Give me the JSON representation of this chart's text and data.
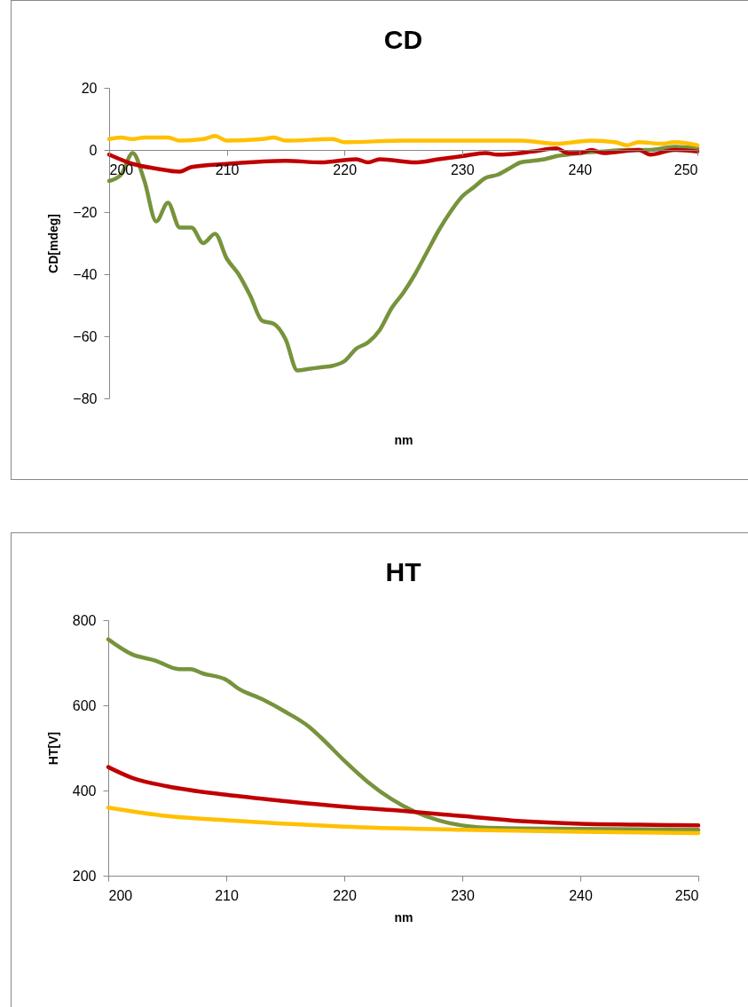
{
  "chart_data": [
    {
      "type": "line",
      "title": "CD",
      "xlabel": "nm",
      "ylabel": "CD[mdeg]",
      "xlim": [
        200,
        250
      ],
      "xticks": [
        200,
        210,
        220,
        230,
        240,
        250
      ],
      "ylim": [
        -80,
        20
      ],
      "yticks": [
        -80,
        -60,
        -40,
        -20,
        0,
        20
      ],
      "series": [
        {
          "color": "#77933c",
          "x": [
            200,
            201,
            202,
            203,
            204,
            205,
            206,
            207,
            208,
            209,
            210,
            211,
            212,
            213,
            214,
            215,
            216,
            217,
            218,
            219,
            220,
            221,
            222,
            223,
            224,
            225,
            226,
            227,
            228,
            229,
            230,
            231,
            232,
            233,
            234,
            235,
            236,
            237,
            238,
            239,
            240,
            242,
            244,
            246,
            248,
            250
          ],
          "values": [
            -10,
            -8,
            -1,
            -10,
            -23,
            -17,
            -25,
            -25,
            -30,
            -27,
            -35,
            -40,
            -47,
            -55,
            -56,
            -61,
            -71,
            -70.5,
            -70,
            -69.5,
            -68,
            -64,
            -62,
            -58,
            -51,
            -46,
            -40,
            -33,
            -26,
            -20,
            -15,
            -12,
            -9,
            -8,
            -6,
            -4,
            -3.5,
            -3,
            -2,
            -1.5,
            -1,
            -0.5,
            0,
            0,
            1,
            0.5
          ]
        },
        {
          "color": "#c00000",
          "x": [
            200,
            202,
            204,
            206,
            207,
            210,
            215,
            218,
            221,
            222,
            223,
            226,
            228,
            230,
            232,
            233,
            236,
            238,
            239,
            240,
            241,
            242,
            245,
            246,
            248,
            250
          ],
          "values": [
            -1.5,
            -4.5,
            -6,
            -7,
            -5.5,
            -4.5,
            -3.5,
            -4,
            -3,
            -4,
            -3,
            -4,
            -3,
            -2,
            -1,
            -1.5,
            -0.5,
            0.5,
            -1,
            -1,
            0,
            -1,
            0,
            -1.5,
            0,
            -0.5
          ]
        },
        {
          "color": "#ffc000",
          "x": [
            200,
            201,
            202,
            203,
            205,
            206,
            208,
            209,
            210,
            213,
            214,
            215,
            219,
            220,
            225,
            230,
            235,
            238,
            241,
            243,
            244,
            245,
            247,
            248,
            250
          ],
          "values": [
            3.5,
            4,
            3.5,
            4,
            4,
            3,
            3.5,
            4.5,
            3,
            3.5,
            4,
            3,
            3.5,
            2.5,
            3,
            3,
            3,
            2,
            3,
            2.5,
            1.5,
            2.5,
            2,
            2.5,
            1.5
          ]
        }
      ]
    },
    {
      "type": "line",
      "title": "HT",
      "xlabel": "nm",
      "ylabel": "HT[V]",
      "xlim": [
        200,
        250
      ],
      "xticks": [
        200,
        210,
        220,
        230,
        240,
        250
      ],
      "ylim": [
        200,
        800
      ],
      "yticks": [
        200,
        400,
        600,
        800
      ],
      "series": [
        {
          "color": "#77933c",
          "x": [
            200,
            202,
            204,
            206,
            207,
            208,
            210,
            211,
            213,
            215,
            217,
            218,
            220,
            222,
            224,
            226,
            228,
            230,
            233,
            240,
            250
          ],
          "values": [
            755,
            720,
            705,
            685,
            685,
            675,
            660,
            640,
            615,
            585,
            550,
            525,
            470,
            420,
            380,
            350,
            330,
            318,
            312,
            310,
            308
          ]
        },
        {
          "color": "#c00000",
          "x": [
            200,
            202,
            205,
            210,
            215,
            220,
            225,
            230,
            235,
            240,
            245,
            250
          ],
          "values": [
            455,
            430,
            410,
            390,
            375,
            362,
            352,
            340,
            328,
            322,
            320,
            318
          ]
        },
        {
          "color": "#ffc000",
          "x": [
            200,
            205,
            210,
            215,
            220,
            230,
            240,
            250
          ],
          "values": [
            360,
            340,
            330,
            322,
            315,
            308,
            303,
            300
          ]
        }
      ]
    }
  ]
}
